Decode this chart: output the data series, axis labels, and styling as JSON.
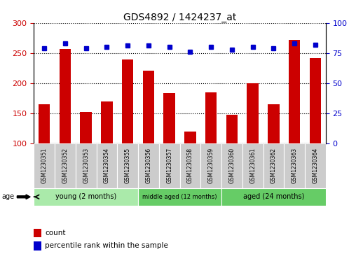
{
  "title": "GDS4892 / 1424237_at",
  "samples": [
    "GSM1230351",
    "GSM1230352",
    "GSM1230353",
    "GSM1230354",
    "GSM1230355",
    "GSM1230356",
    "GSM1230357",
    "GSM1230358",
    "GSM1230359",
    "GSM1230360",
    "GSM1230361",
    "GSM1230362",
    "GSM1230363",
    "GSM1230364"
  ],
  "counts": [
    165,
    257,
    152,
    170,
    239,
    221,
    184,
    120,
    185,
    148,
    200,
    165,
    272,
    242
  ],
  "percentiles": [
    79,
    83,
    79,
    80,
    81,
    81,
    80,
    76,
    80,
    78,
    80,
    79,
    83,
    82
  ],
  "ylim_left": [
    100,
    300
  ],
  "ylim_right": [
    0,
    100
  ],
  "yticks_left": [
    100,
    150,
    200,
    250,
    300
  ],
  "yticks_right": [
    0,
    25,
    50,
    75,
    100
  ],
  "bar_color": "#cc0000",
  "dot_color": "#0000cc",
  "bar_width": 0.55,
  "group_defs": [
    {
      "label": "young (2 months)",
      "start": 0,
      "end": 4,
      "color": "#aaeaaa"
    },
    {
      "label": "middle aged (12 months)",
      "start": 5,
      "end": 8,
      "color": "#66cc66"
    },
    {
      "label": "aged (24 months)",
      "start": 9,
      "end": 13,
      "color": "#66cc66"
    }
  ],
  "cell_color": "#cccccc",
  "age_label": "age",
  "legend_count": "count",
  "legend_percentile": "percentile rank within the sample",
  "title_fontsize": 10,
  "tick_fontsize": 8,
  "sample_fontsize": 5.5
}
